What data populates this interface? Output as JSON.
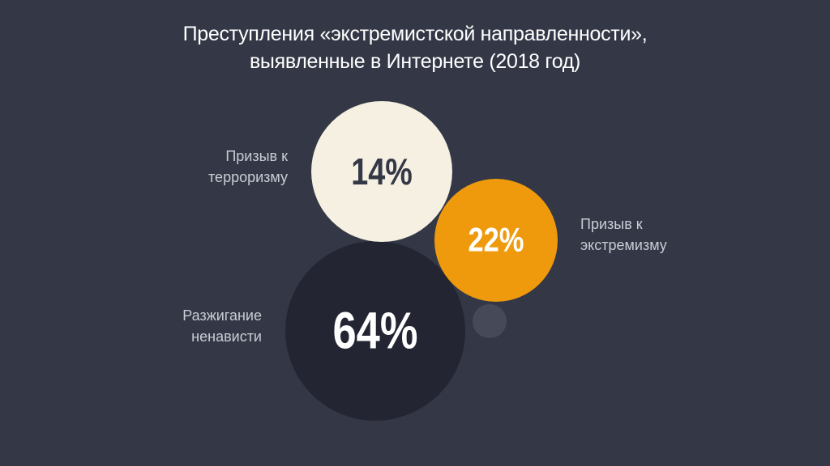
{
  "title": {
    "line1": "Преступления «экстремистской направленности»,",
    "line2": "выявленные в Интернете (2018 год)"
  },
  "chart_data": {
    "type": "bubble",
    "title": "Преступления «экстремистской направленности», выявленные в Интернете (2018 год)",
    "unit": "%",
    "series": [
      {
        "label_lines": [
          "Призыв к",
          "терроризму"
        ],
        "value": 14,
        "value_label": "14%",
        "color": "#f5f0e1",
        "text_color": "#343846"
      },
      {
        "label_lines": [
          "Призыв к",
          "экстремизму"
        ],
        "value": 22,
        "value_label": "22%",
        "color": "#ef9a0c",
        "text_color": "#ffffff"
      },
      {
        "label_lines": [
          "Разжигание",
          "ненависти"
        ],
        "value": 64,
        "value_label": "64%",
        "color": "#232533",
        "text_color": "#ffffff"
      }
    ],
    "decoration_color": "#464a58"
  }
}
